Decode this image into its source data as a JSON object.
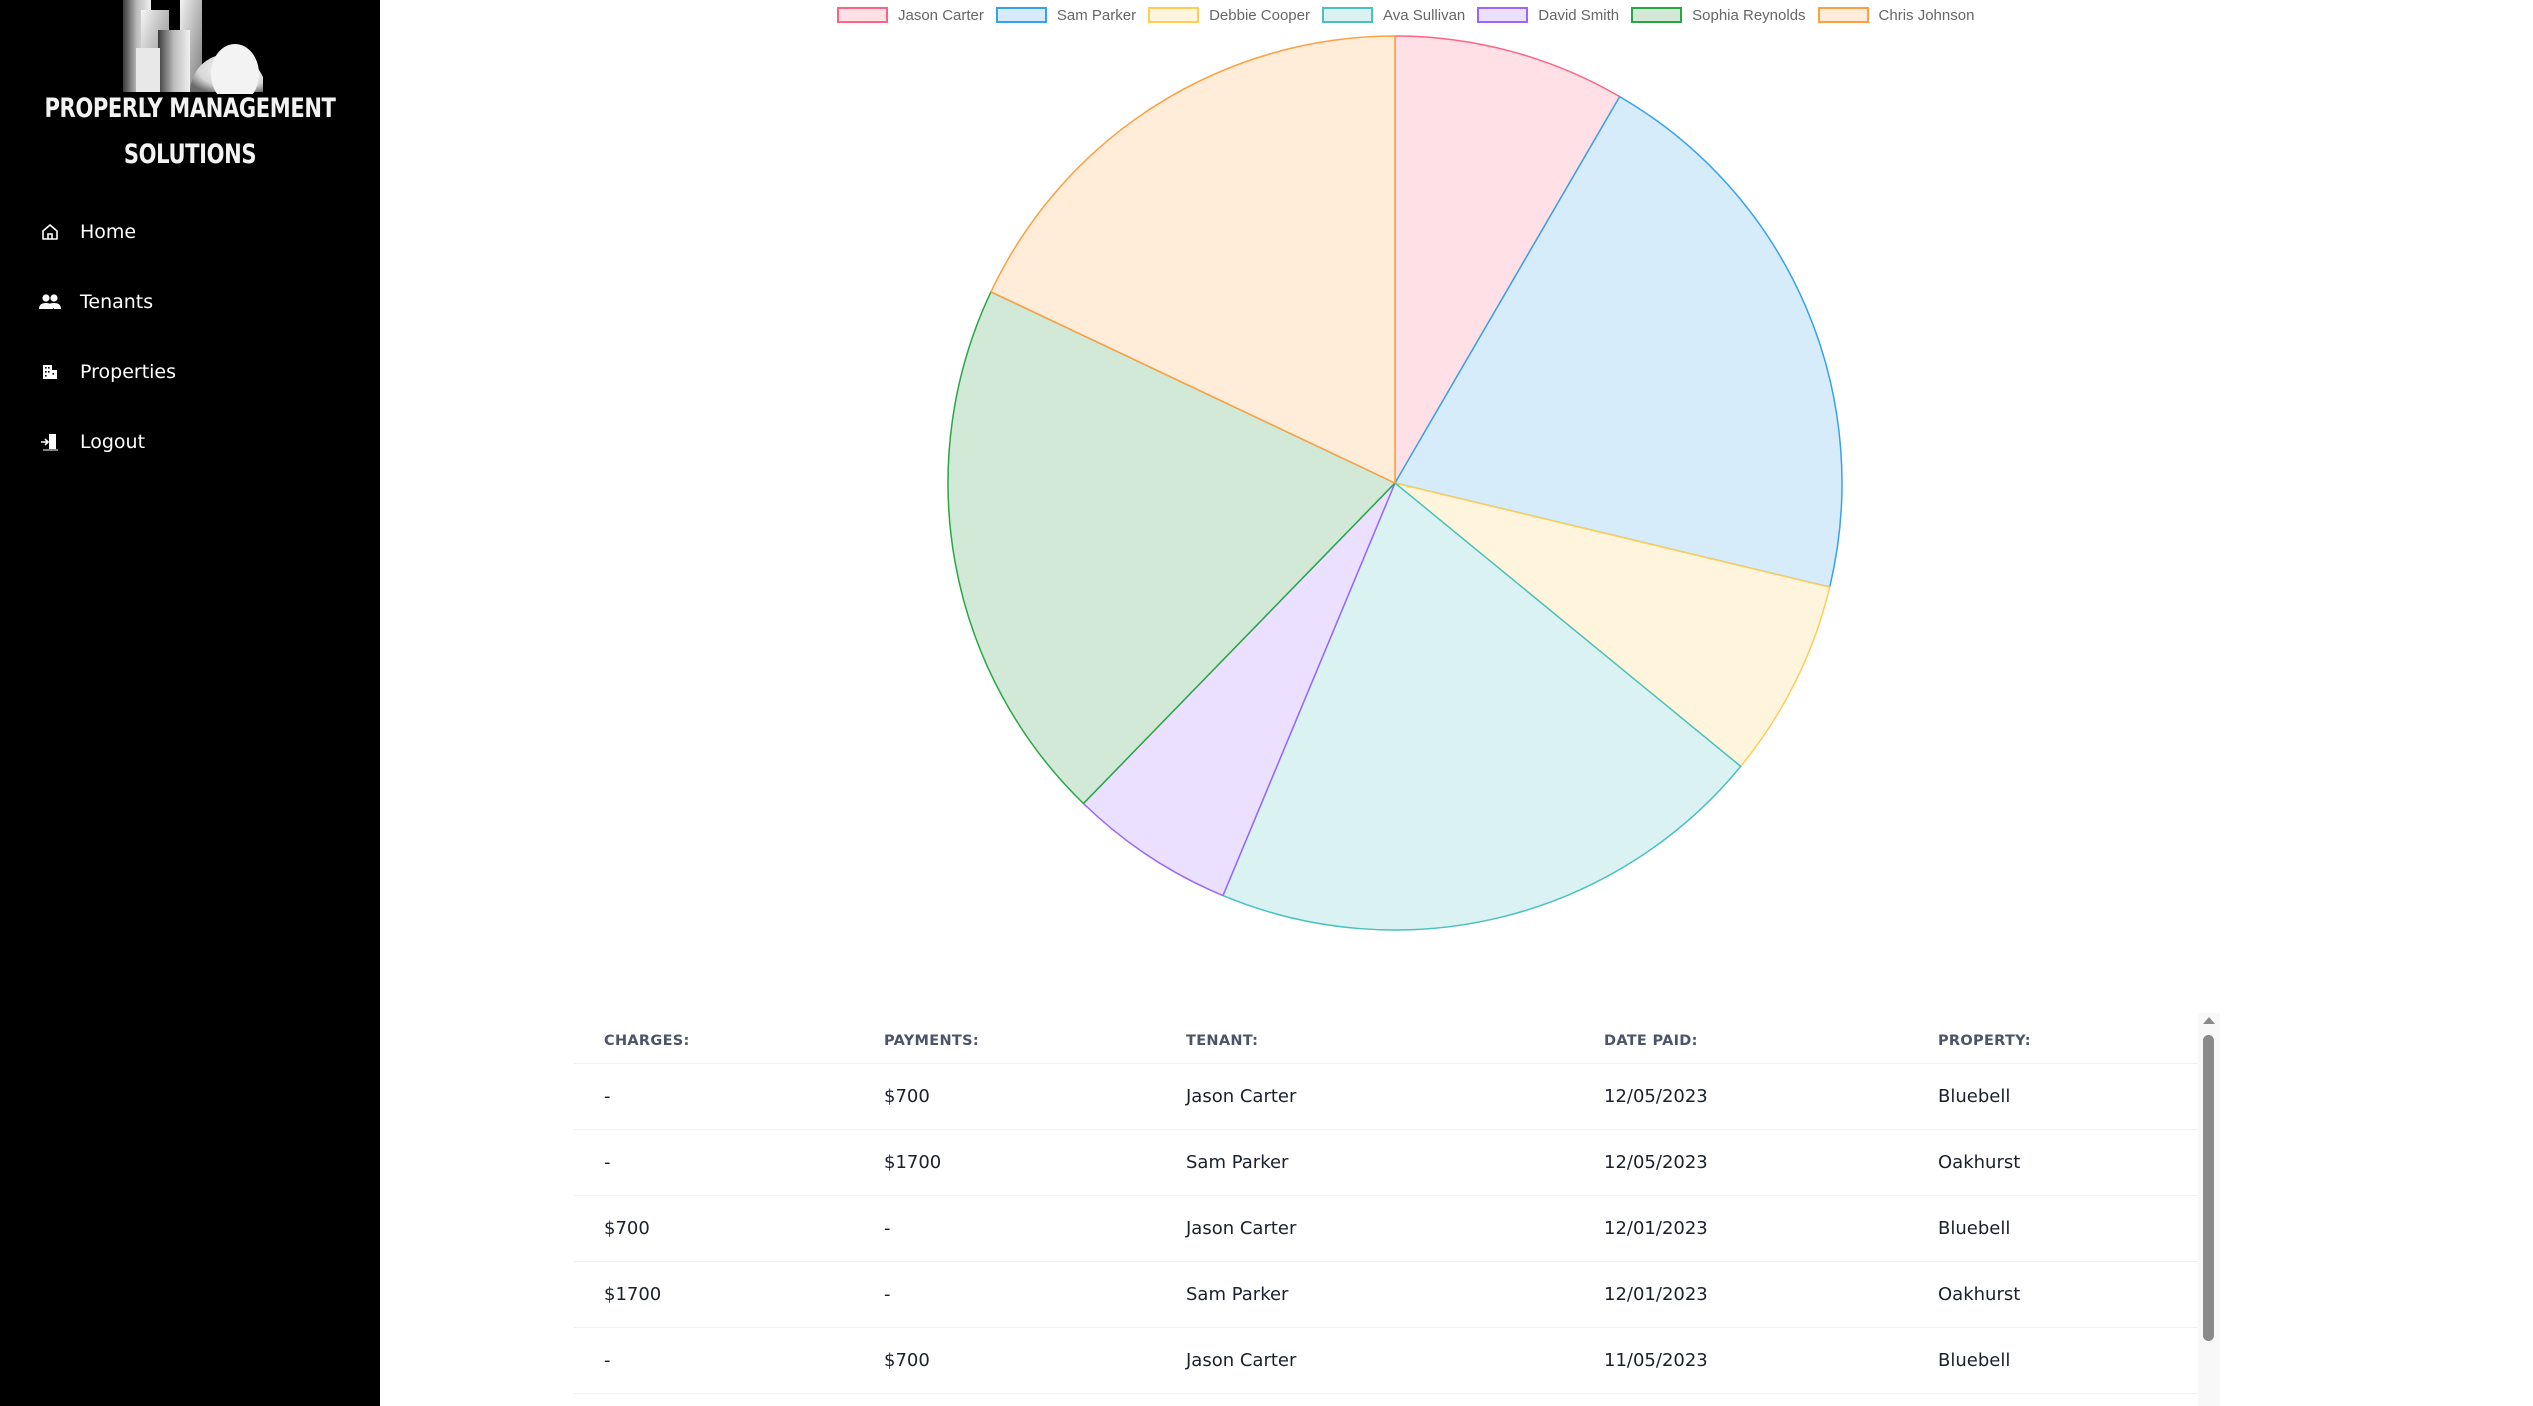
{
  "sidebar": {
    "brand": {
      "line1": "PROPERLY MANAGEMENT",
      "line2": "SOLUTIONS",
      "logo_icon": "buildings-logo-icon"
    },
    "items": [
      {
        "label": "Home",
        "icon": "home-icon"
      },
      {
        "label": "Tenants",
        "icon": "users-icon"
      },
      {
        "label": "Properties",
        "icon": "building-icon"
      },
      {
        "label": "Logout",
        "icon": "door-exit-icon"
      }
    ]
  },
  "chart_data": {
    "type": "pie",
    "title": "",
    "legend_position": "top",
    "categories": [
      "Jason Carter",
      "Sam Parker",
      "Debbie Cooper",
      "Ava Sullivan",
      "David Smith",
      "Sophia Reynolds",
      "Chris Johnson"
    ],
    "values": [
      700,
      1700,
      600,
      1700,
      500,
      1650,
      1500
    ],
    "border_colors": [
      "#ff6384",
      "#36a2eb",
      "#ffcd56",
      "#4bc0c0",
      "#9966ff",
      "#28a745",
      "#ff9f40"
    ],
    "background_colors": [
      "#ffe0e6",
      "#d7ecfb",
      "#fff5dd",
      "#dbf2f2",
      "#ebe0ff",
      "#d1e9d6",
      "#ffecd9"
    ]
  },
  "table": {
    "headers": [
      "CHARGES:",
      "PAYMENTS:",
      "TENANT:",
      "DATE PAID:",
      "PROPERTY:"
    ],
    "rows": [
      [
        "-",
        "$700",
        "Jason Carter",
        "12/05/2023",
        "Bluebell"
      ],
      [
        "-",
        "$1700",
        "Sam Parker",
        "12/05/2023",
        "Oakhurst"
      ],
      [
        "$700",
        "-",
        "Jason Carter",
        "12/01/2023",
        "Bluebell"
      ],
      [
        "$1700",
        "-",
        "Sam Parker",
        "12/01/2023",
        "Oakhurst"
      ],
      [
        "-",
        "$700",
        "Jason Carter",
        "11/05/2023",
        "Bluebell"
      ]
    ]
  }
}
